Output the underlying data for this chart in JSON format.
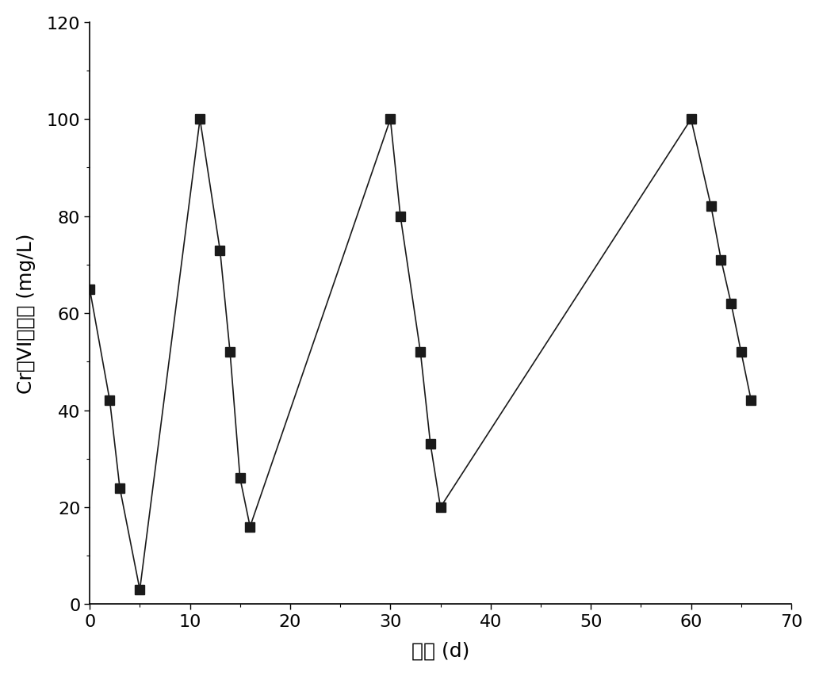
{
  "x": [
    0,
    2,
    3,
    5,
    11,
    13,
    14,
    15,
    16,
    30,
    31,
    33,
    34,
    35,
    60,
    62,
    63,
    64,
    65,
    66
  ],
  "y": [
    65,
    42,
    24,
    3,
    100,
    73,
    52,
    26,
    16,
    100,
    80,
    52,
    33,
    20,
    100,
    82,
    71,
    62,
    52,
    42
  ],
  "xlim": [
    0,
    70
  ],
  "ylim": [
    0,
    120
  ],
  "xticks": [
    0,
    10,
    20,
    30,
    40,
    50,
    60,
    70
  ],
  "yticks": [
    0,
    20,
    40,
    60,
    80,
    100,
    120
  ],
  "xlabel": "时间 (d)",
  "ylabel": "Cr（VI）浓度 (mg/L)",
  "marker": "s",
  "marker_color": "#1a1a1a",
  "marker_size": 9,
  "line_color": "#1a1a1a",
  "line_width": 1.2,
  "background_color": "#ffffff",
  "tick_fontsize": 16,
  "label_fontsize": 18
}
